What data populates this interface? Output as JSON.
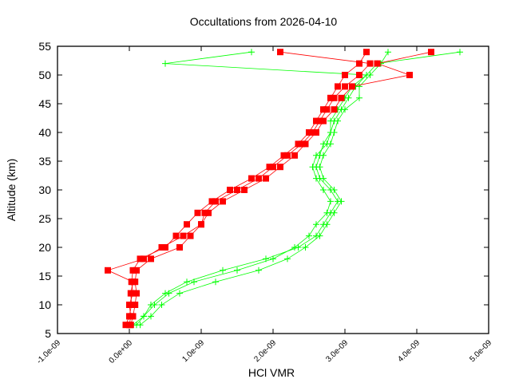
{
  "chart_data": {
    "type": "line",
    "title": "Occultations from 2026-04-10",
    "xlabel": "HCl VMR",
    "ylabel": "Altitude (km)",
    "xlim": [
      -1e-09,
      5e-09
    ],
    "ylim": [
      5,
      55
    ],
    "x_ticks": [
      "-1.0e-09",
      "0.0e+00",
      "1.0e-09",
      "2.0e-09",
      "3.0e-09",
      "4.0e-09",
      "5.0e-09"
    ],
    "x_tick_values": [
      -1e-09,
      0,
      1e-09,
      2e-09,
      3e-09,
      4e-09,
      5e-09
    ],
    "y_ticks": [
      "5",
      "10",
      "15",
      "20",
      "25",
      "30",
      "35",
      "40",
      "45",
      "50",
      "55"
    ],
    "y_tick_values": [
      5,
      10,
      15,
      20,
      25,
      30,
      35,
      40,
      45,
      50,
      55
    ],
    "grid": false,
    "colors": {
      "red": "#ff0000",
      "green": "#00ff00"
    },
    "altitudes": [
      6.5,
      8,
      10,
      12,
      14,
      16,
      18,
      20,
      22,
      24,
      26,
      28,
      30,
      32,
      34,
      36,
      38,
      40,
      42,
      44,
      46,
      48,
      50,
      52,
      54
    ],
    "series": [
      {
        "color": "red",
        "marker": "square",
        "x": [
          0,
          2e-11,
          0,
          5e-11,
          3e-11,
          5e-11,
          1.5e-10,
          5e-10,
          6.5e-10,
          8e-10,
          9.5e-10,
          1.15e-09,
          1.4e-09,
          1.7e-09,
          1.95e-09,
          2.15e-09,
          2.35e-09,
          2.5e-09,
          2.6e-09,
          2.7e-09,
          2.8e-09,
          2.9e-09,
          3e-09,
          3.2e-09,
          3.3e-09
        ]
      },
      {
        "color": "red",
        "marker": "square",
        "x": [
          2e-11,
          5e-11,
          8e-11,
          1e-10,
          8e-11,
          1e-10,
          3e-10,
          7e-10,
          8.5e-10,
          1e-09,
          1.1e-09,
          1.3e-09,
          1.6e-09,
          1.9e-09,
          2.1e-09,
          2.3e-09,
          2.45e-09,
          2.6e-09,
          2.7e-09,
          2.85e-09,
          2.95e-09,
          3.1e-09,
          3.9e-09,
          3.45e-09,
          4.2e-09
        ]
      },
      {
        "color": "red",
        "marker": "square",
        "x": [
          -5e-11,
          0,
          3e-11,
          2e-11,
          5e-11,
          -3e-10,
          2e-10,
          4.5e-10,
          7.5e-10,
          1e-09,
          1.05e-09,
          1.2e-09,
          1.5e-09,
          1.8e-09,
          2e-09,
          2.2e-09,
          2.4e-09,
          2.55e-09,
          2.65e-09,
          2.75e-09,
          2.85e-09,
          3e-09,
          3.2e-09,
          3.35e-09,
          2.1e-09
        ]
      },
      {
        "color": "green",
        "marker": "plus",
        "x": [
          1e-10,
          2e-10,
          3.5e-10,
          5.5e-10,
          9e-10,
          1.5e-09,
          2e-09,
          2.3e-09,
          2.5e-09,
          2.6e-09,
          2.75e-09,
          2.8e-09,
          2.7e-09,
          2.6e-09,
          2.55e-09,
          2.6e-09,
          2.75e-09,
          2.8e-09,
          2.8e-09,
          2.9e-09,
          3e-09,
          3.1e-09,
          3.3e-09,
          5e-10,
          1.7e-09
        ]
      },
      {
        "color": "green",
        "marker": "plus",
        "x": [
          1.5e-10,
          3e-10,
          4.5e-10,
          7e-10,
          1.2e-09,
          1.8e-09,
          2.2e-09,
          2.45e-09,
          2.65e-09,
          2.75e-09,
          2.85e-09,
          2.95e-09,
          2.85e-09,
          2.7e-09,
          2.65e-09,
          2.7e-09,
          2.8e-09,
          2.85e-09,
          2.9e-09,
          3e-09,
          3.2e-09,
          3.2e-09,
          3.35e-09,
          3.5e-09,
          3.6e-09
        ]
      },
      {
        "color": "green",
        "marker": "plus",
        "x": [
          5e-11,
          2e-10,
          3e-10,
          5e-10,
          8e-10,
          1.3e-09,
          1.9e-09,
          2.35e-09,
          2.6e-09,
          2.7e-09,
          2.8e-09,
          2.9e-09,
          2.8e-09,
          2.65e-09,
          2.6e-09,
          2.65e-09,
          2.7e-09,
          2.8e-09,
          2.85e-09,
          2.95e-09,
          3.05e-09,
          3.15e-09,
          3.3e-09,
          3.45e-09,
          4.6e-09
        ]
      }
    ]
  }
}
